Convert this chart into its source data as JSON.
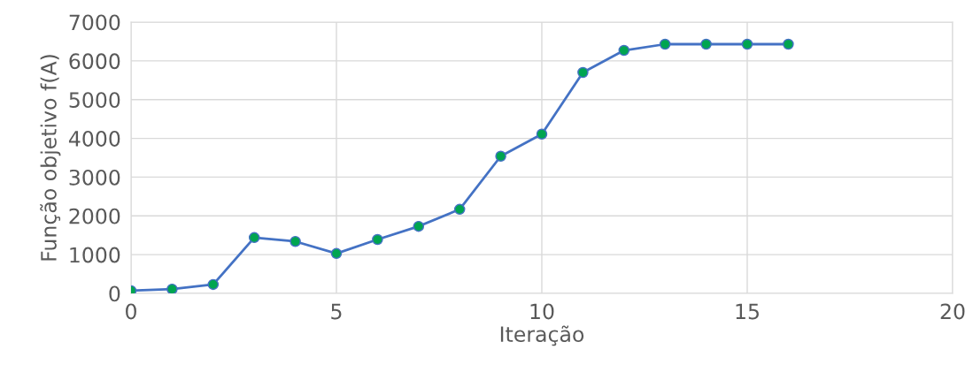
{
  "chart_data": {
    "type": "line",
    "xlabel": "Iteração",
    "ylabel": "Função objetivo f(A)",
    "x": [
      0,
      1,
      2,
      3,
      4,
      5,
      6,
      7,
      8,
      9,
      10,
      11,
      12,
      13,
      14,
      15,
      16
    ],
    "series": [
      {
        "color": "#4472c4",
        "colors": [
          "#00a550",
          "#00a550",
          "#00a550",
          "#00a550",
          "#00a550",
          "#00a550",
          "#00a550",
          "#00a550",
          "#00a550",
          "#00a550",
          "#00a550",
          "#00a550",
          "#00a550",
          "#00a550",
          "#00a550",
          "#00a550",
          "#00a550"
        ],
        "values": [
          70,
          110,
          230,
          1440,
          1340,
          1030,
          1390,
          1730,
          2170,
          3540,
          4110,
          5700,
          6270,
          6430,
          6430,
          6430,
          6430
        ]
      }
    ],
    "xlim": [
      0,
      20
    ],
    "xticks": [
      0,
      5,
      10,
      15,
      20
    ],
    "ylim": [
      0,
      7000
    ],
    "yticks": [
      0,
      1000,
      2000,
      3000,
      4000,
      5000,
      6000,
      7000
    ],
    "grid": true,
    "marker": "circle",
    "line_style": "solid",
    "legend": false
  }
}
